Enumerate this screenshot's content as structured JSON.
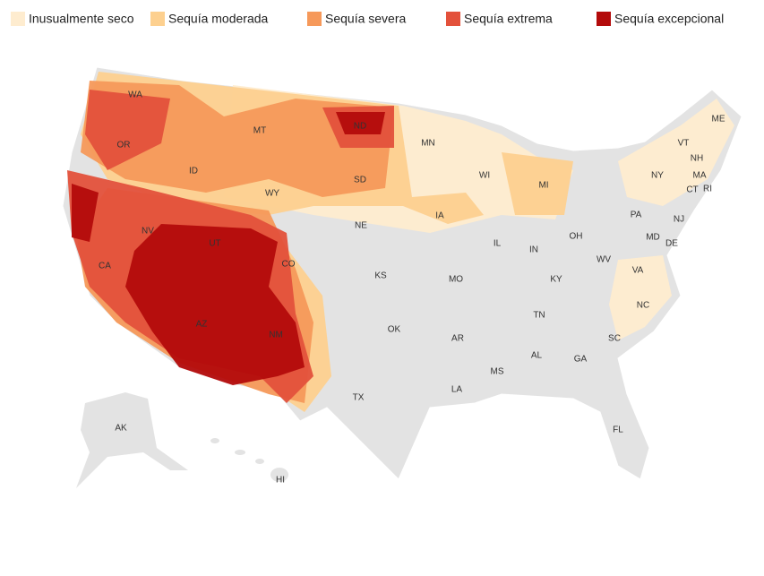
{
  "legend": [
    {
      "label": "Inusualmente seco",
      "color": "#feeccf"
    },
    {
      "label": "Sequía moderada",
      "color": "#fdd08f"
    },
    {
      "label": "Sequía severa",
      "color": "#f6995a"
    },
    {
      "label": "Sequía extrema",
      "color": "#e3513b"
    },
    {
      "label": "Sequía excepcional",
      "color": "#b30b0b"
    }
  ],
  "states": [
    "WA",
    "OR",
    "CA",
    "NV",
    "ID",
    "MT",
    "WY",
    "UT",
    "AZ",
    "NM",
    "CO",
    "ND",
    "SD",
    "NE",
    "KS",
    "OK",
    "TX",
    "MN",
    "IA",
    "MO",
    "AR",
    "LA",
    "WI",
    "IL",
    "MI",
    "IN",
    "OH",
    "KY",
    "TN",
    "MS",
    "AL",
    "GA",
    "FL",
    "SC",
    "NC",
    "VA",
    "WV",
    "PA",
    "NY",
    "VT",
    "NH",
    "ME",
    "MA",
    "CT",
    "RI",
    "NJ",
    "DE",
    "MD",
    "AK",
    "HI"
  ]
}
